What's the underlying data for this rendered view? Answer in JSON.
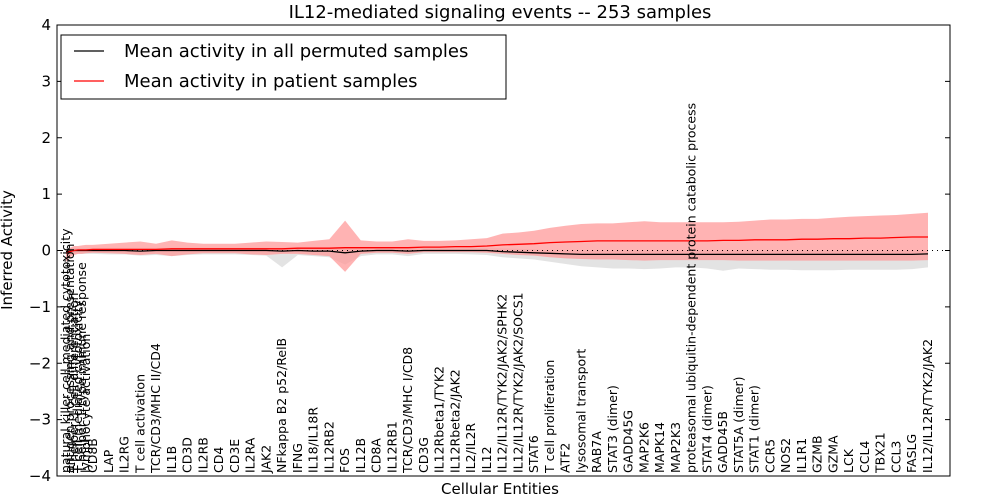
{
  "chart_data": {
    "type": "line",
    "title": "IL12-mediated signaling events -- 253 samples",
    "xlabel": "Cellular Entities",
    "ylabel": "Inferred Activity",
    "ylim": [
      -4,
      4
    ],
    "yticks": [
      -4,
      -3,
      -2,
      -1,
      0,
      1,
      2,
      3,
      4
    ],
    "ytick_labels": [
      "−4",
      "−3",
      "−2",
      "−1",
      "0",
      "1",
      "2",
      "3",
      "4"
    ],
    "grid": false,
    "zero_line": "dotted",
    "legend_position": "top-left",
    "legend": [
      {
        "label": "Mean activity in all permuted samples",
        "color": "#000000"
      },
      {
        "label": "Mean activity in patient samples",
        "color": "#ff0000"
      }
    ],
    "colors": {
      "patient_line": "#ff0000",
      "patient_band": "#ff9999",
      "permuted_line": "#000000",
      "permuted_band": "#d9d9d9"
    },
    "categories": [
      "natural killer cell mediated cytotoxicity",
      "antigen processing and presentation",
      "T-helper 1 cell differentiation",
      "T cell mediated cytotoxicity",
      "T-helper 1 type immune response",
      "lymphocyte activation",
      "CD8B",
      "LAP",
      "IL2RG",
      "T cell activation",
      "TCR/CD3/MHC II/CD4",
      "IL1B",
      "CD3D",
      "IL2RB",
      "CD4",
      "CD3E",
      "IL2RA",
      "JAK2",
      "NFkappa B2 p52/RelB",
      "IFNG",
      "IL18/IL18R",
      "IL12RB2",
      "FOS",
      "IL12B",
      "CD8A",
      "IL12RB1",
      "TCR/CD3/MHC I/CD8",
      "CD3G",
      "IL12Rbeta1/TYK2",
      "IL12Rbeta2/JAK2",
      "IL2/IL2R",
      "IL12",
      "IL12/IL12R/TYK2/JAK2/SPHK2",
      "IL12/IL12R/TYK2/JAK2/SOCS1",
      "STAT6",
      "T cell proliferation",
      "ATF2",
      "lysosomal transport",
      "RAB7A",
      "STAT3 (dimer)",
      "GADD45G",
      "MAP2K6",
      "MAPK14",
      "MAP2K3",
      "proteasomal ubiquitin-dependent protein catabolic process",
      "STAT4 (dimer)",
      "GADD45B",
      "STAT5A (dimer)",
      "STAT1 (dimer)",
      "CCR5",
      "NOS2",
      "IL1R1",
      "GZMB",
      "GZMA",
      "LCK",
      "CCL4",
      "TBX21",
      "CCL3",
      "FASLG",
      "IL12/IL12R/TYK2/JAK2"
    ],
    "series": [
      {
        "name": "Mean activity in patient samples",
        "values": [
          -0.05,
          -0.02,
          0.0,
          0.01,
          0.01,
          0.01,
          0.02,
          0.02,
          0.02,
          0.02,
          0.02,
          0.03,
          0.03,
          0.03,
          0.03,
          0.03,
          0.03,
          0.03,
          0.03,
          0.04,
          0.04,
          0.04,
          0.05,
          0.05,
          0.05,
          0.05,
          0.05,
          0.06,
          0.06,
          0.07,
          0.07,
          0.08,
          0.1,
          0.11,
          0.12,
          0.14,
          0.15,
          0.16,
          0.17,
          0.17,
          0.17,
          0.17,
          0.17,
          0.17,
          0.17,
          0.17,
          0.18,
          0.18,
          0.19,
          0.19,
          0.19,
          0.2,
          0.2,
          0.21,
          0.21,
          0.22,
          0.22,
          0.23,
          0.24,
          0.24
        ],
        "upper": [
          0.0,
          0.05,
          0.08,
          0.08,
          0.09,
          0.1,
          0.1,
          0.12,
          0.14,
          0.16,
          0.12,
          0.18,
          0.14,
          0.12,
          0.12,
          0.12,
          0.14,
          0.16,
          0.15,
          0.14,
          0.17,
          0.2,
          0.53,
          0.18,
          0.16,
          0.16,
          0.2,
          0.17,
          0.17,
          0.18,
          0.2,
          0.22,
          0.3,
          0.32,
          0.35,
          0.4,
          0.44,
          0.47,
          0.48,
          0.48,
          0.5,
          0.52,
          0.5,
          0.5,
          0.5,
          0.5,
          0.5,
          0.51,
          0.53,
          0.55,
          0.55,
          0.56,
          0.56,
          0.58,
          0.6,
          0.61,
          0.62,
          0.63,
          0.65,
          0.67
        ],
        "lower": [
          -0.2,
          -0.12,
          -0.08,
          -0.06,
          -0.06,
          -0.05,
          -0.04,
          -0.05,
          -0.06,
          -0.08,
          -0.06,
          -0.1,
          -0.07,
          -0.05,
          -0.05,
          -0.05,
          -0.07,
          -0.08,
          -0.06,
          -0.06,
          -0.08,
          -0.1,
          -0.38,
          -0.06,
          -0.04,
          -0.04,
          -0.06,
          -0.03,
          -0.03,
          -0.03,
          -0.03,
          -0.04,
          -0.06,
          -0.08,
          -0.09,
          -0.12,
          -0.14,
          -0.15,
          -0.16,
          -0.16,
          -0.17,
          -0.18,
          -0.17,
          -0.17,
          -0.17,
          -0.17,
          -0.17,
          -0.18,
          -0.18,
          -0.18,
          -0.18,
          -0.18,
          -0.18,
          -0.18,
          -0.18,
          -0.18,
          -0.18,
          -0.18,
          -0.18,
          -0.17
        ]
      },
      {
        "name": "Mean activity in all permuted samples",
        "values": [
          -0.02,
          -0.01,
          0.0,
          0.0,
          0.0,
          0.0,
          0.0,
          0.0,
          0.0,
          -0.01,
          0.0,
          0.0,
          0.0,
          0.0,
          0.0,
          0.0,
          0.0,
          0.0,
          -0.01,
          0.0,
          -0.01,
          -0.01,
          -0.04,
          -0.01,
          0.0,
          0.0,
          -0.01,
          0.0,
          0.0,
          0.0,
          0.0,
          0.0,
          -0.02,
          -0.03,
          -0.04,
          -0.05,
          -0.06,
          -0.07,
          -0.07,
          -0.07,
          -0.07,
          -0.07,
          -0.07,
          -0.07,
          -0.07,
          -0.07,
          -0.07,
          -0.07,
          -0.07,
          -0.07,
          -0.07,
          -0.07,
          -0.07,
          -0.07,
          -0.07,
          -0.07,
          -0.07,
          -0.07,
          -0.07,
          -0.06
        ],
        "upper": [
          0.06,
          0.05,
          0.05,
          0.05,
          0.05,
          0.05,
          0.05,
          0.05,
          0.05,
          0.05,
          0.05,
          0.05,
          0.05,
          0.05,
          0.05,
          0.05,
          0.05,
          0.05,
          0.05,
          0.05,
          0.05,
          0.05,
          0.05,
          0.05,
          0.05,
          0.05,
          0.05,
          0.05,
          0.05,
          0.05,
          0.05,
          0.05,
          0.04,
          0.03,
          0.02,
          0.0,
          0.0,
          0.0,
          0.0,
          0.0,
          0.0,
          0.0,
          0.0,
          0.0,
          0.0,
          0.0,
          0.0,
          0.0,
          0.0,
          0.0,
          0.0,
          0.0,
          0.0,
          0.0,
          0.0,
          0.0,
          0.0,
          0.0,
          0.0,
          0.0
        ],
        "lower": [
          -0.1,
          -0.08,
          -0.06,
          -0.06,
          -0.06,
          -0.06,
          -0.06,
          -0.07,
          -0.07,
          -0.09,
          -0.08,
          -0.1,
          -0.08,
          -0.07,
          -0.07,
          -0.07,
          -0.08,
          -0.09,
          -0.3,
          -0.08,
          -0.1,
          -0.12,
          -0.25,
          -0.1,
          -0.07,
          -0.07,
          -0.1,
          -0.06,
          -0.06,
          -0.06,
          -0.07,
          -0.08,
          -0.12,
          -0.14,
          -0.16,
          -0.2,
          -0.24,
          -0.28,
          -0.3,
          -0.32,
          -0.32,
          -0.33,
          -0.32,
          -0.3,
          -0.3,
          -0.32,
          -0.36,
          -0.32,
          -0.33,
          -0.34,
          -0.34,
          -0.35,
          -0.35,
          -0.35,
          -0.34,
          -0.34,
          -0.34,
          -0.34,
          -0.33,
          -0.3
        ]
      }
    ]
  }
}
